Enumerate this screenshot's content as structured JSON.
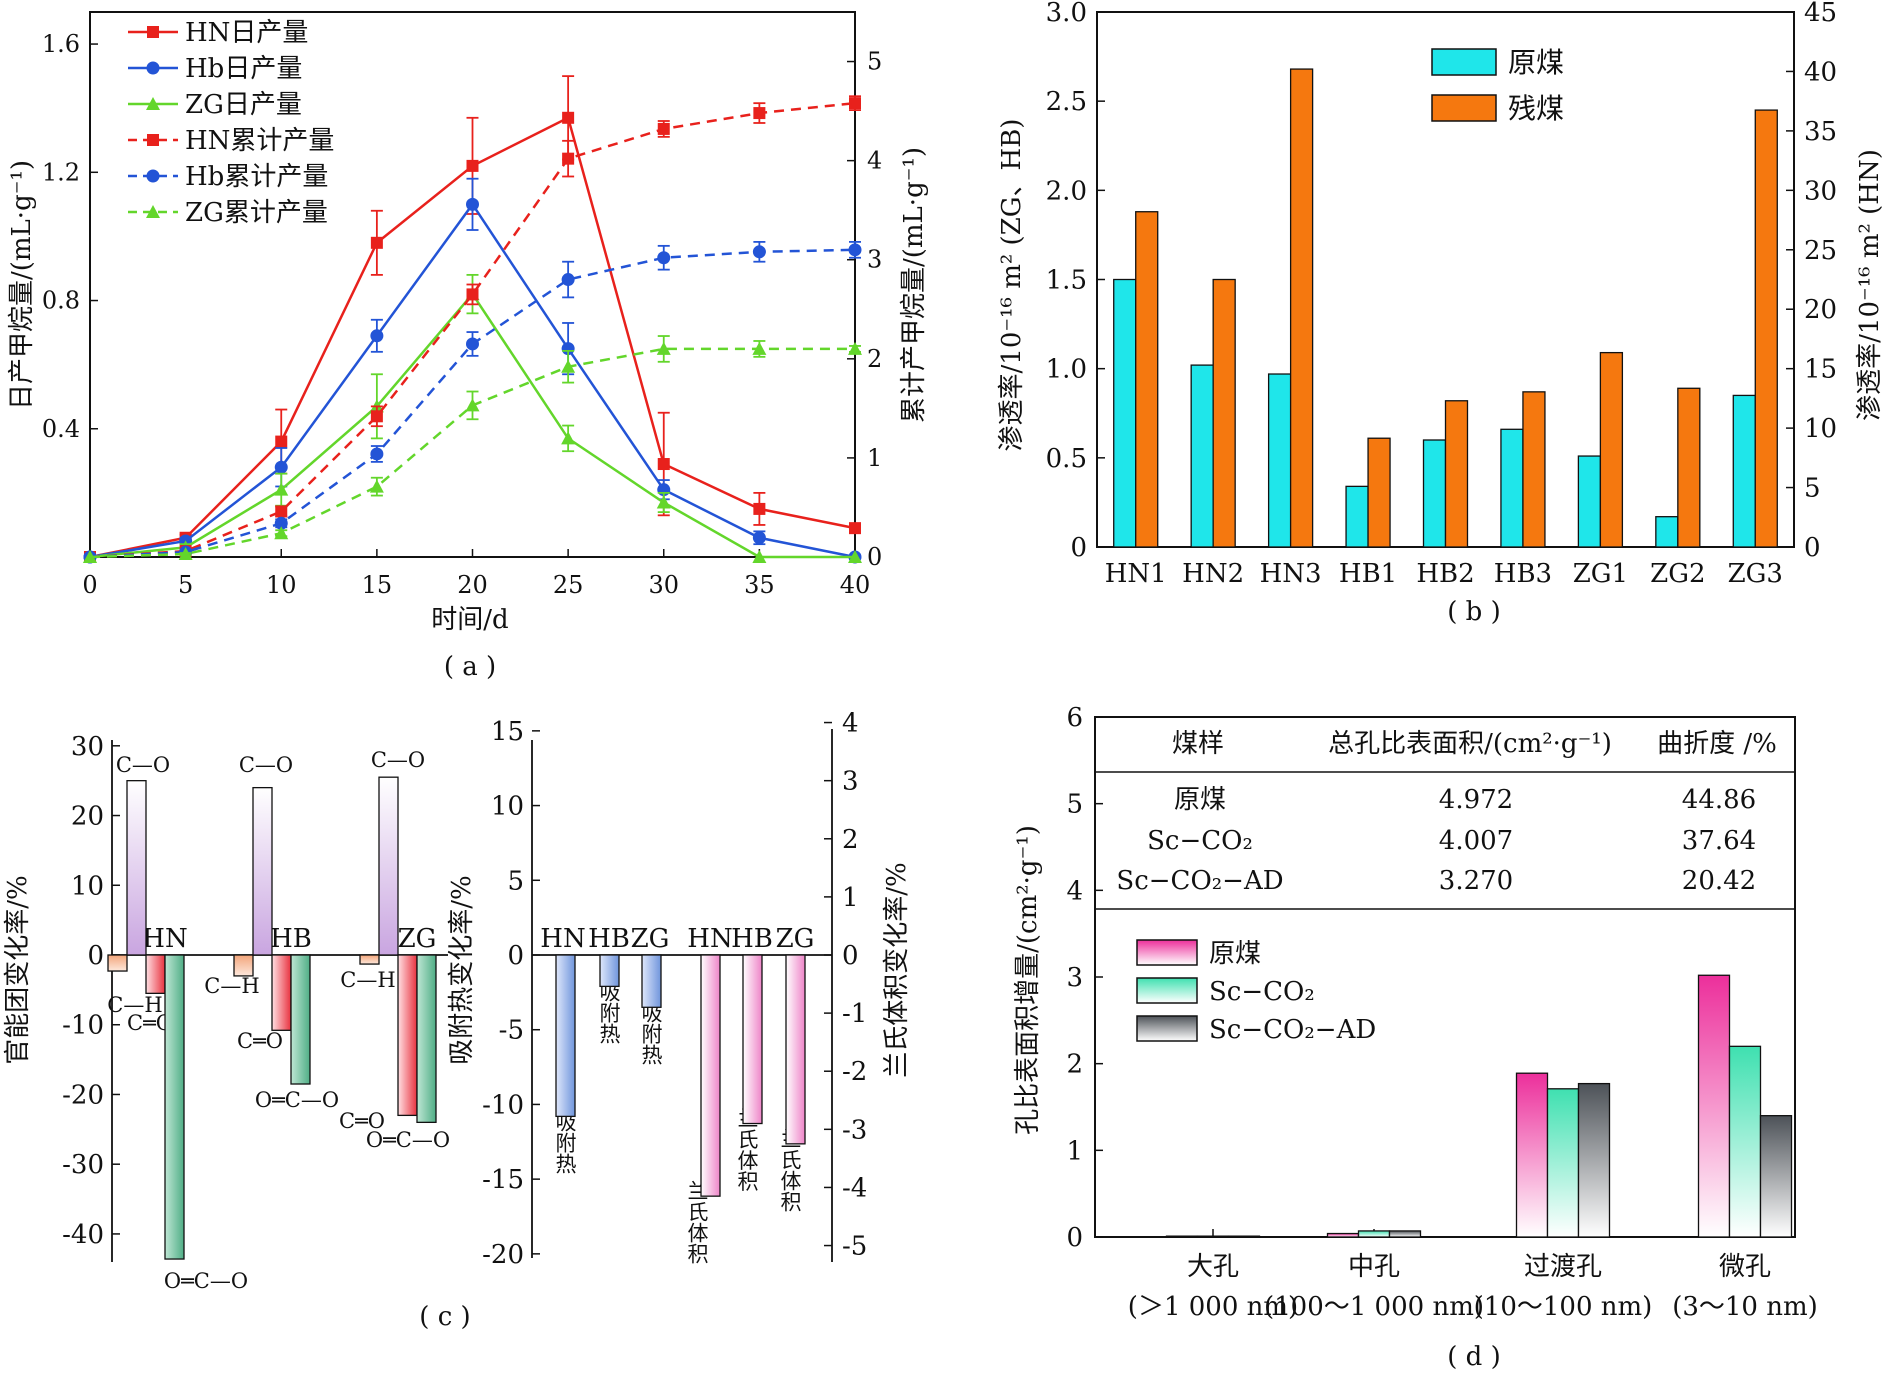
{
  "panel_a": {
    "caption": "( a )",
    "xlabel": "时间/d",
    "ylabel_left": "日产甲烷量/(mL·g⁻¹)",
    "ylabel_right": "累计产甲烷量/(mL·g⁻¹)",
    "x_ticks": [
      "0",
      "5",
      "10",
      "15",
      "20",
      "25",
      "30",
      "35",
      "40"
    ],
    "y_left_ticks": [
      "0.4",
      "0.8",
      "1.2",
      "1.6"
    ],
    "y_right_ticks": [
      "0",
      "1",
      "2",
      "3",
      "4",
      "5"
    ],
    "legend": [
      "HN日产量",
      "Hb日产量",
      "ZG日产量",
      "HN累计产量",
      "Hb累计产量",
      "ZG累计产量"
    ]
  },
  "panel_b": {
    "caption": "( b )",
    "ylabel_left": "渗透率/10⁻¹⁶ m² (ZG、HB)",
    "ylabel_right": "渗透率/10⁻¹⁶ m² (HN)",
    "y_left_ticks": [
      "0",
      "0.5",
      "1.0",
      "1.5",
      "2.0",
      "2.5",
      "3.0"
    ],
    "y_right_ticks": [
      "0",
      "5",
      "10",
      "15",
      "20",
      "25",
      "30",
      "35",
      "40",
      "45"
    ],
    "legend": [
      "原煤",
      "残煤"
    ]
  },
  "panel_c": {
    "caption": "( c )",
    "ylabel_left": "官能团变化率/%",
    "ylabel_mid": "吸附热变化率/%",
    "ylabel_right": "兰氏体积变化率/%",
    "y_left_ticks": [
      "30",
      "20",
      "10",
      "0",
      "-10",
      "-20",
      "-30",
      "-40"
    ],
    "y_mid_ticks": [
      "15",
      "10",
      "5",
      "0",
      "-5",
      "-10",
      "-15",
      "-20"
    ],
    "y_right_ticks": [
      "4",
      "3",
      "2",
      "1",
      "0",
      "-1",
      "-2",
      "-3",
      "-4",
      "-5"
    ],
    "group_labels": [
      "HN",
      "HB",
      "ZG"
    ],
    "mid_group_labels": [
      "HN",
      "HB",
      "ZG",
      "HN",
      "HB",
      "ZG"
    ],
    "bond_labels": {
      "co": "C—O",
      "ch": "C—H",
      "cdo": "C═O",
      "ocdo": "O═C—O"
    },
    "bar_labels": {
      "adsorption_heat": "吸附热",
      "langmuir_volume": "兰氏体积"
    }
  },
  "panel_d": {
    "caption": "( d )",
    "ylabel": "孔比表面积增量/(cm²·g⁻¹)",
    "y_ticks": [
      "0",
      "1",
      "2",
      "3",
      "4",
      "5",
      "6"
    ],
    "table": {
      "headers": [
        "煤样",
        "总孔比表面积/(cm²·g⁻¹)",
        "曲折度 /%"
      ],
      "rows": [
        [
          "原煤",
          "4.972",
          "44.86"
        ],
        [
          "Sc−CO₂",
          "4.007",
          "37.64"
        ],
        [
          "Sc−CO₂−AD",
          "3.270",
          "20.42"
        ]
      ]
    },
    "legend": [
      "原煤",
      "Sc−CO₂",
      "Sc−CO₂−AD"
    ]
  },
  "chart_data": [
    {
      "panel": "a",
      "type": "line",
      "xlabel": "时间/d",
      "ylabel": "日产甲烷量/(mL·g⁻¹)",
      "y2label": "累计产甲烷量/(mL·g⁻¹)",
      "xlim": [
        0,
        40
      ],
      "ylim": [
        0,
        1.7
      ],
      "y2lim": [
        0,
        5.5
      ],
      "x": [
        0,
        5,
        10,
        15,
        20,
        25,
        30,
        35,
        40
      ],
      "series": [
        {
          "name": "HN日产量",
          "axis": "left",
          "color": "#e8211c",
          "marker": "square",
          "dash": false,
          "values": [
            0.0,
            0.06,
            0.36,
            0.98,
            1.22,
            1.37,
            0.29,
            0.15,
            0.09
          ],
          "errors": [
            0,
            0.01,
            0.1,
            0.1,
            0.15,
            0.13,
            0.16,
            0.05,
            0.01
          ]
        },
        {
          "name": "Hb日产量",
          "axis": "left",
          "color": "#2354d6",
          "marker": "circle",
          "dash": false,
          "values": [
            0.0,
            0.05,
            0.28,
            0.69,
            1.1,
            0.65,
            0.21,
            0.06,
            0.0
          ],
          "errors": [
            0,
            0.01,
            0.06,
            0.05,
            0.08,
            0.08,
            0.03,
            0.02,
            0
          ]
        },
        {
          "name": "ZG日产量",
          "axis": "left",
          "color": "#63d62b",
          "marker": "triangle",
          "dash": false,
          "values": [
            0.0,
            0.03,
            0.21,
            0.47,
            0.82,
            0.37,
            0.17,
            0.0,
            0.0
          ],
          "errors": [
            0,
            0.01,
            0.05,
            0.1,
            0.06,
            0.04,
            0.03,
            0,
            0
          ]
        },
        {
          "name": "HN累计产量",
          "axis": "right",
          "color": "#e8211c",
          "marker": "square",
          "dash": true,
          "values": [
            0.0,
            0.06,
            0.46,
            1.42,
            2.65,
            4.02,
            4.32,
            4.48,
            4.58
          ],
          "errors": [
            0,
            0.01,
            0.05,
            0.1,
            0.1,
            0.18,
            0.08,
            0.1,
            0.07
          ]
        },
        {
          "name": "Hb累计产量",
          "axis": "right",
          "color": "#2354d6",
          "marker": "circle",
          "dash": true,
          "values": [
            0.0,
            0.05,
            0.34,
            1.04,
            2.15,
            2.8,
            3.02,
            3.08,
            3.1
          ],
          "errors": [
            0,
            0.01,
            0.04,
            0.08,
            0.12,
            0.18,
            0.12,
            0.1,
            0.08
          ]
        },
        {
          "name": "ZG累计产量",
          "axis": "right",
          "color": "#63d62b",
          "marker": "triangle",
          "dash": true,
          "values": [
            0.0,
            0.03,
            0.24,
            0.71,
            1.53,
            1.92,
            2.1,
            2.1,
            2.1
          ],
          "errors": [
            0,
            0.01,
            0.03,
            0.09,
            0.14,
            0.16,
            0.13,
            0.08,
            0.03
          ]
        }
      ]
    },
    {
      "panel": "b",
      "type": "bar",
      "categories": [
        "HN1",
        "HN2",
        "HN3",
        "HB1",
        "HB2",
        "HB3",
        "ZG1",
        "ZG2",
        "ZG3"
      ],
      "ylabel": "渗透率/10⁻¹⁶ m² (ZG、HB)",
      "y2label": "渗透率/10⁻¹⁶ m² (HN)",
      "ylim": [
        0,
        3.0
      ],
      "y2lim": [
        0,
        45
      ],
      "series": [
        {
          "name": "原煤",
          "color": "#1fe6ea",
          "values": [
            1.5,
            1.02,
            0.97,
            0.34,
            0.6,
            0.66,
            0.51,
            0.17,
            0.85
          ]
        },
        {
          "name": "残煤",
          "color": "#f5780f",
          "values": [
            1.88,
            1.5,
            2.68,
            0.61,
            0.82,
            0.87,
            1.09,
            0.89,
            2.45
          ]
        }
      ]
    },
    {
      "panel": "c",
      "type": "bar",
      "groups": [
        "HN",
        "HB",
        "ZG"
      ],
      "functional_groups": {
        "ylim": [
          -45,
          30
        ],
        "series": [
          {
            "name": "C—H",
            "color": "#f6c7a8",
            "values": [
              -2.3,
              -3.0,
              -1.3
            ]
          },
          {
            "name": "C—O",
            "color": "#dcc7ea",
            "values": [
              25.0,
              24.0,
              25.5
            ]
          },
          {
            "name": "C═O",
            "color": "#f07080",
            "values": [
              -5.5,
              -10.8,
              -23.0
            ]
          },
          {
            "name": "O═C—O",
            "color": "#8fcfb0",
            "values": [
              -43.6,
              -18.5,
              -24.0
            ]
          }
        ]
      },
      "adsorption_heat": {
        "ylim": [
          -20,
          15
        ],
        "name": "吸附热",
        "color": "#9ab4e6",
        "values": [
          -10.8,
          -2.1,
          -3.5
        ]
      },
      "langmuir_volume": {
        "ylim": [
          -5,
          4
        ],
        "name": "兰氏体积",
        "color": "#f0a6d6",
        "values": [
          -4.15,
          -2.9,
          -3.25
        ]
      }
    },
    {
      "panel": "d",
      "type": "bar",
      "categories": [
        "大孔\n(＞1 000 nm)",
        "中孔\n(100～1 000 nm)",
        "过渡孔\n(10～100 nm)",
        "微孔\n(3～10 nm)"
      ],
      "ylabel": "孔比表面积增量/(cm²·g⁻¹)",
      "ylim": [
        0,
        6
      ],
      "series": [
        {
          "name": "原煤",
          "color": "#ec2f9b",
          "values": [
            0.01,
            0.04,
            1.89,
            3.02
          ]
        },
        {
          "name": "Sc−CO₂",
          "color": "#3fe0b0",
          "values": [
            0.01,
            0.07,
            1.71,
            2.2
          ]
        },
        {
          "name": "Sc−CO₂−AD",
          "color": "#555a60",
          "values": [
            0.01,
            0.07,
            1.77,
            1.4
          ]
        }
      ]
    }
  ]
}
